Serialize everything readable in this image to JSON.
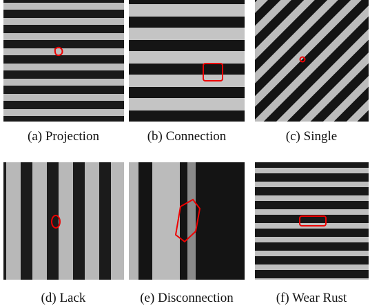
{
  "figure": {
    "panels": [
      {
        "caption": "(a) Projection"
      },
      {
        "caption": "(b) Connection"
      },
      {
        "caption": "(c) Single"
      },
      {
        "caption": "(d) Lack"
      },
      {
        "caption": "(e) Disconnection"
      },
      {
        "caption": "(f) Wear Rust"
      }
    ]
  }
}
